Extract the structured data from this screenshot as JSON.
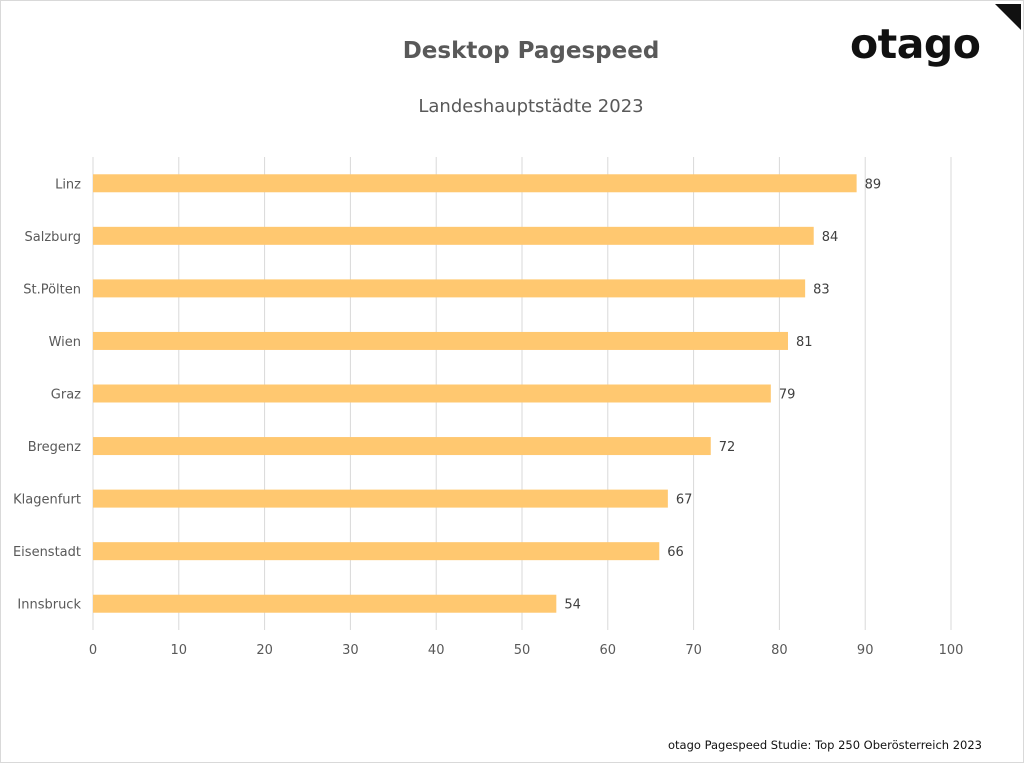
{
  "brand": {
    "logo_text": "otago",
    "accent_color": "#FFC870"
  },
  "footer_note": "otago Pagespeed Studie: Top 250 Oberösterreich 2023",
  "chart_data": {
    "type": "bar",
    "orientation": "horizontal",
    "title": "Desktop Pagespeed",
    "subtitle": "Landeshauptstädte 2023",
    "categories": [
      "Linz",
      "Salzburg",
      "St.Pölten",
      "Wien",
      "Graz",
      "Bregenz",
      "Klagenfurt",
      "Eisenstadt",
      "Innsbruck"
    ],
    "values": [
      89,
      84,
      83,
      81,
      79,
      72,
      67,
      66,
      54
    ],
    "xlim": [
      0,
      100
    ],
    "xticks": [
      0,
      10,
      20,
      30,
      40,
      50,
      60,
      70,
      80,
      90,
      100
    ],
    "grid": "vertical",
    "data_labels": true,
    "bar_color": "#FFC870",
    "xlabel": "",
    "ylabel": ""
  }
}
